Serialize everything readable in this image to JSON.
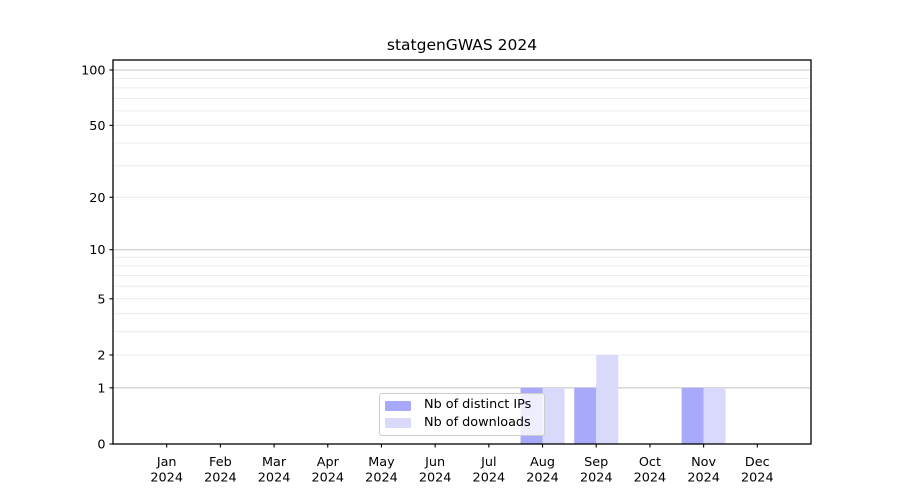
{
  "title": "statgenGWAS 2024",
  "colors": {
    "ips": "#a9a9fb",
    "downloads": "#d9d9fb",
    "grid_minor": "#ececec",
    "grid_major": "#c8c8c8",
    "axis": "#000000",
    "legend_border": "#cccccc",
    "legend_bg": "rgba(255,255,255,0.8)",
    "text": "#000000"
  },
  "legend": {
    "items": [
      {
        "label": "Nb of distinct IPs",
        "color": "ips"
      },
      {
        "label": "Nb of downloads",
        "color": "downloads"
      }
    ]
  },
  "chart_data": {
    "type": "bar",
    "title": "statgenGWAS 2024",
    "categories": [
      "Jan",
      "Feb",
      "Mar",
      "Apr",
      "May",
      "Jun",
      "Jul",
      "Aug",
      "Sep",
      "Oct",
      "Nov",
      "Dec"
    ],
    "year": "2024",
    "series": [
      {
        "name": "Nb of distinct IPs",
        "values": [
          0,
          0,
          0,
          0,
          0,
          0,
          0,
          1,
          1,
          0,
          1,
          0
        ]
      },
      {
        "name": "Nb of downloads",
        "values": [
          0,
          0,
          0,
          0,
          0,
          0,
          0,
          1,
          2,
          0,
          1,
          0
        ]
      }
    ],
    "yscale": "log1p",
    "ylim": [
      0,
      113
    ],
    "yticks": [
      0,
      1,
      2,
      5,
      10,
      20,
      50,
      100
    ],
    "grid_major_values": [
      1,
      10,
      100
    ],
    "grid_minor_values": [
      2,
      3,
      4,
      5,
      6,
      7,
      8,
      9,
      20,
      30,
      40,
      50,
      60,
      70,
      80,
      90
    ],
    "grid": true,
    "legend_position": "lower-center"
  }
}
